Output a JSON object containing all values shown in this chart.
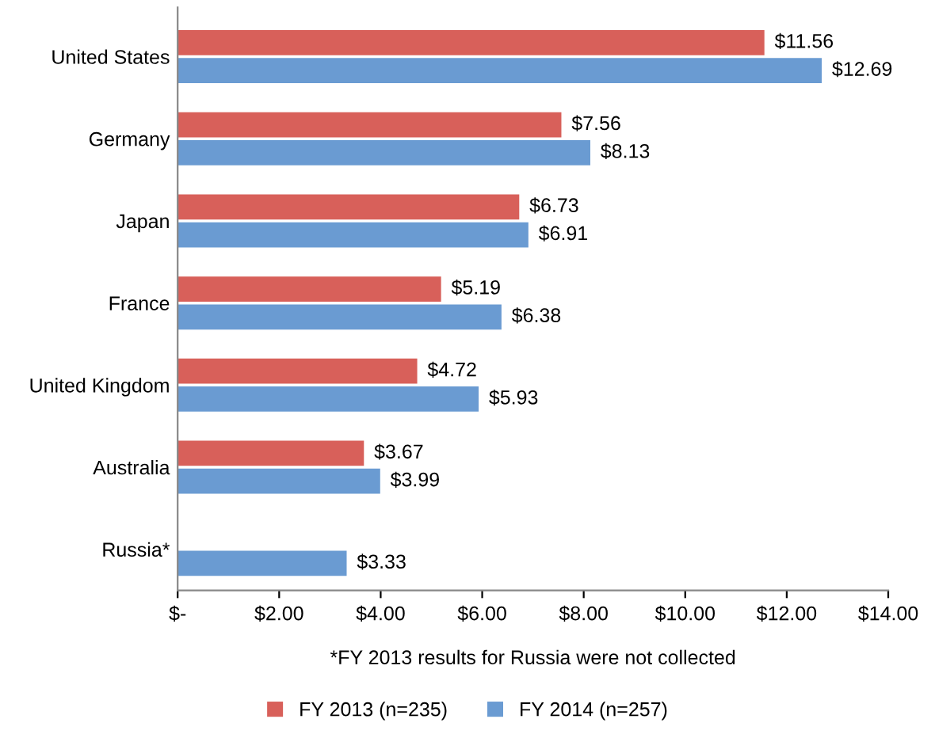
{
  "chart_data": {
    "type": "bar",
    "orientation": "horizontal",
    "categories": [
      "United States",
      "Germany",
      "Japan",
      "France",
      "United Kingdom",
      "Australia",
      "Russia*"
    ],
    "series": [
      {
        "name": "FY 2013 (n=235)",
        "color": "#d8605a",
        "values": [
          11.56,
          7.56,
          6.73,
          5.19,
          4.72,
          3.67,
          null
        ],
        "value_labels": [
          "$11.56",
          "$7.56",
          "$6.73",
          "$5.19",
          "$4.72",
          "$3.67",
          null
        ]
      },
      {
        "name": "FY 2014 (n=257)",
        "color": "#6a9bd2",
        "values": [
          12.69,
          8.13,
          6.91,
          6.38,
          5.93,
          3.99,
          3.33
        ],
        "value_labels": [
          "$12.69",
          "$8.13",
          "$6.91",
          "$6.38",
          "$5.93",
          "$3.99",
          "$3.33"
        ]
      }
    ],
    "xlim": [
      0,
      14
    ],
    "xticks": [
      {
        "value": 0,
        "label": "$-"
      },
      {
        "value": 2,
        "label": "$2.00"
      },
      {
        "value": 4,
        "label": "$4.00"
      },
      {
        "value": 6,
        "label": "$6.00"
      },
      {
        "value": 8,
        "label": "$8.00"
      },
      {
        "value": 10,
        "label": "$10.00"
      },
      {
        "value": 12,
        "label": "$12.00"
      },
      {
        "value": 14,
        "label": "$14.00"
      }
    ],
    "annotations": [
      "*FY 2013 results for Russia were not collected"
    ],
    "legend": "bottom",
    "grid": false
  }
}
